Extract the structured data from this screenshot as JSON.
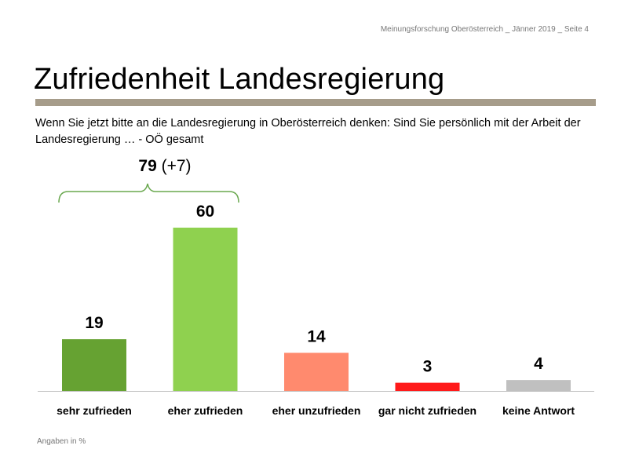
{
  "header": {
    "source": "Meinungsforschung Oberösterreich _ Jänner 2019 _ Seite 4"
  },
  "title": "Zufriedenheit Landesregierung",
  "question": "Wenn Sie jetzt bitte an die Landesregierung in Oberösterreich denken: Sind Sie persönlich mit der Arbeit der Landesregierung … - OÖ gesamt",
  "bracket": {
    "value": "79",
    "change": "(+7)",
    "color": "#6aa84f"
  },
  "footnote": "Angaben in %",
  "chart_data": {
    "type": "bar",
    "categories": [
      "sehr zufrieden",
      "eher zufrieden",
      "eher unzufrieden",
      "gar nicht zufrieden",
      "keine Antwort"
    ],
    "values": [
      19,
      60,
      14,
      3,
      4
    ],
    "colors": [
      "#66a232",
      "#8fd14f",
      "#ff8a6e",
      "#ff1a1a",
      "#c0c0c0"
    ],
    "ylim": [
      0,
      60
    ],
    "title": "",
    "xlabel": "",
    "ylabel": "",
    "grid": false,
    "legend": "none"
  }
}
